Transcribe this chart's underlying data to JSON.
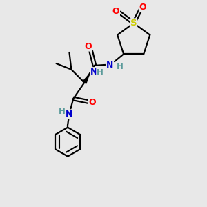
{
  "background_color": "#e8e8e8",
  "bond_color": "#000000",
  "atom_colors": {
    "O": "#ff0000",
    "N": "#0000cc",
    "S": "#cccc00",
    "H": "#5a9a9a",
    "C": "#000000"
  },
  "figsize": [
    3.0,
    3.0
  ],
  "dpi": 100
}
